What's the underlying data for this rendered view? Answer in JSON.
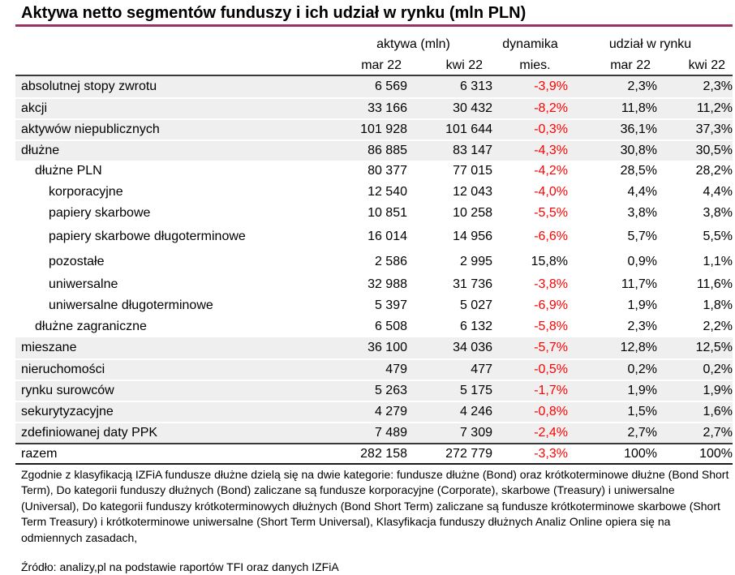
{
  "title": "Aktywa netto segmentów funduszy i ich udział w rynku (mln PLN)",
  "colors": {
    "accent_rule": "#993366",
    "negative": "#fe0000",
    "shaded_row": "#efefef"
  },
  "table": {
    "groups": {
      "aktywa": "aktywa (mln)",
      "dynamika_line1": "dynamika",
      "dynamika_line2": "mies.",
      "udzial": "udział w rynku"
    },
    "columns": {
      "aktywa_mar": "mar 22",
      "aktywa_kwi": "kwi 22",
      "udzial_mar": "mar 22",
      "udzial_kwi": "kwi 22"
    },
    "rows": [
      {
        "label": "absolutnej stopy zwrotu",
        "indent": 0,
        "aktywa_mar": "6 569",
        "aktywa_kwi": "6 313",
        "dynamika": "-3,9%",
        "udzial_mar": "2,3%",
        "udzial_kwi": "2,3%"
      },
      {
        "label": "akcji",
        "indent": 0,
        "aktywa_mar": "33 166",
        "aktywa_kwi": "30 432",
        "dynamika": "-8,2%",
        "udzial_mar": "11,8%",
        "udzial_kwi": "11,2%"
      },
      {
        "label": "aktywów niepublicznych",
        "indent": 0,
        "aktywa_mar": "101 928",
        "aktywa_kwi": "101 644",
        "dynamika": "-0,3%",
        "udzial_mar": "36,1%",
        "udzial_kwi": "37,3%"
      },
      {
        "label": "dłużne",
        "indent": 0,
        "aktywa_mar": "86 885",
        "aktywa_kwi": "83 147",
        "dynamika": "-4,3%",
        "udzial_mar": "30,8%",
        "udzial_kwi": "30,5%"
      },
      {
        "label": "dłużne PLN",
        "indent": 1,
        "aktywa_mar": "80 377",
        "aktywa_kwi": "77 015",
        "dynamika": "-4,2%",
        "udzial_mar": "28,5%",
        "udzial_kwi": "28,2%"
      },
      {
        "label": "korporacyjne",
        "indent": 2,
        "aktywa_mar": "12 540",
        "aktywa_kwi": "12 043",
        "dynamika": "-4,0%",
        "udzial_mar": "4,4%",
        "udzial_kwi": "4,4%"
      },
      {
        "label": "papiery skarbowe",
        "indent": 2,
        "aktywa_mar": "10 851",
        "aktywa_kwi": "10 258",
        "dynamika": "-5,5%",
        "udzial_mar": "3,8%",
        "udzial_kwi": "3,8%"
      },
      {
        "label": "papiery skarbowe długoterminowe",
        "indent": 2,
        "aktywa_mar": "16 014",
        "aktywa_kwi": "14 956",
        "dynamika": "-6,6%",
        "udzial_mar": "5,7%",
        "udzial_kwi": "5,5%"
      },
      {
        "label": "pozostałe",
        "indent": 2,
        "aktywa_mar": "2 586",
        "aktywa_kwi": "2 995",
        "dynamika": "15,8%",
        "udzial_mar": "0,9%",
        "udzial_kwi": "1,1%"
      },
      {
        "label": "uniwersalne",
        "indent": 2,
        "aktywa_mar": "32 988",
        "aktywa_kwi": "31 736",
        "dynamika": "-3,8%",
        "udzial_mar": "11,7%",
        "udzial_kwi": "11,6%"
      },
      {
        "label": "uniwersalne długoterminowe",
        "indent": 2,
        "aktywa_mar": "5 397",
        "aktywa_kwi": "5 027",
        "dynamika": "-6,9%",
        "udzial_mar": "1,9%",
        "udzial_kwi": "1,8%"
      },
      {
        "label": "dłużne zagraniczne",
        "indent": 1,
        "aktywa_mar": "6 508",
        "aktywa_kwi": "6 132",
        "dynamika": "-5,8%",
        "udzial_mar": "2,3%",
        "udzial_kwi": "2,2%"
      },
      {
        "label": "mieszane",
        "indent": 0,
        "aktywa_mar": "36 100",
        "aktywa_kwi": "34 036",
        "dynamika": "-5,7%",
        "udzial_mar": "12,8%",
        "udzial_kwi": "12,5%"
      },
      {
        "label": "nieruchomości",
        "indent": 0,
        "aktywa_mar": "479",
        "aktywa_kwi": "477",
        "dynamika": "-0,5%",
        "udzial_mar": "0,2%",
        "udzial_kwi": "0,2%"
      },
      {
        "label": "rynku surowców",
        "indent": 0,
        "aktywa_mar": "5 263",
        "aktywa_kwi": "5 175",
        "dynamika": "-1,7%",
        "udzial_mar": "1,9%",
        "udzial_kwi": "1,9%"
      },
      {
        "label": "sekurytyzacyjne",
        "indent": 0,
        "aktywa_mar": "4 279",
        "aktywa_kwi": "4 246",
        "dynamika": "-0,8%",
        "udzial_mar": "1,5%",
        "udzial_kwi": "1,6%"
      },
      {
        "label": "zdefiniowanej daty PPK",
        "indent": 0,
        "aktywa_mar": "7 489",
        "aktywa_kwi": "7 309",
        "dynamika": "-2,4%",
        "udzial_mar": "2,7%",
        "udzial_kwi": "2,7%"
      },
      {
        "label": "razem",
        "indent": 0,
        "aktywa_mar": "282 158",
        "aktywa_kwi": "272 779",
        "dynamika": "-3,3%",
        "udzial_mar": "100%",
        "udzial_kwi": "100%"
      }
    ]
  },
  "footnote": "Zgodnie z klasyfikacją IZFiA fundusze dłużne dzielą się na dwie kategorie: fundusze dłużne (Bond) oraz krótkoterminowe dłużne (Bond Short Term), Do kategorii funduszy dłużnych (Bond) zaliczane są fundusze korporacyjne (Corporate), skarbowe (Treasury) i uniwersalne (Universal), Do kategorii funduszy krótkoterminowych dłużnych (Bond Short Term) zaliczane są fundusze krótkoterminowe skarbowe (Short Term Treasury) i krótkoterminowe uniwersalne (Short Term Universal), Klasyfikacja funduszy dłużnych Analiz Online opiera się na odmiennych zasadach,",
  "source": "Źródło: analizy,pl na podstawie raportów TFI oraz danych IZFiA"
}
